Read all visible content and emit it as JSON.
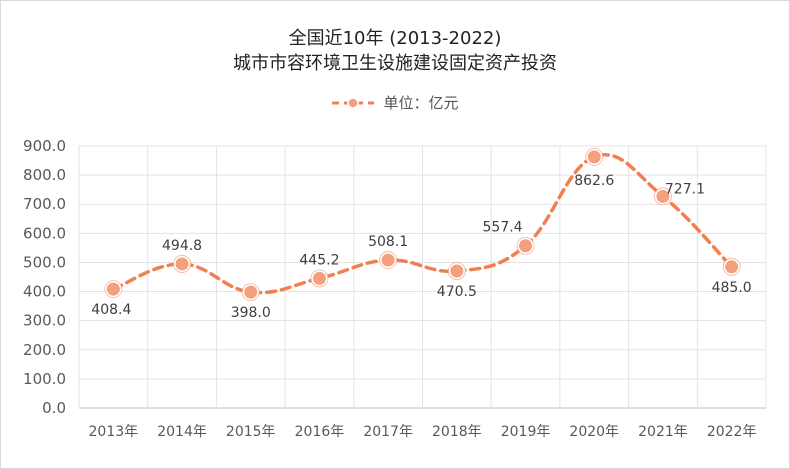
{
  "chart_data": {
    "type": "line",
    "title_line1": "全国近10年 (2013-2022)",
    "title_line2": "城市市容环境卫生设施建设固定资产投资",
    "legend": "单位：亿元",
    "categories": [
      "2013年",
      "2014年",
      "2015年",
      "2016年",
      "2017年",
      "2018年",
      "2019年",
      "2020年",
      "2021年",
      "2022年"
    ],
    "series": [
      {
        "values": [
          408.4,
          494.8,
          398.0,
          445.2,
          508.1,
          470.5,
          557.4,
          862.6,
          727.1,
          485.0
        ]
      }
    ],
    "data_labels": [
      "408.4",
      "494.8",
      "398.0",
      "445.2",
      "508.1",
      "470.5",
      "557.4",
      "862.6",
      "727.1",
      "485.0"
    ],
    "yticks": [
      "0.0",
      "100.0",
      "200.0",
      "300.0",
      "400.0",
      "500.0",
      "600.0",
      "700.0",
      "800.0",
      "900.0"
    ],
    "ylim": [
      0,
      900
    ],
    "grid": true,
    "line_color": "#f08050",
    "marker_fill": "#f4a07e",
    "legend_placement": "top-center"
  }
}
